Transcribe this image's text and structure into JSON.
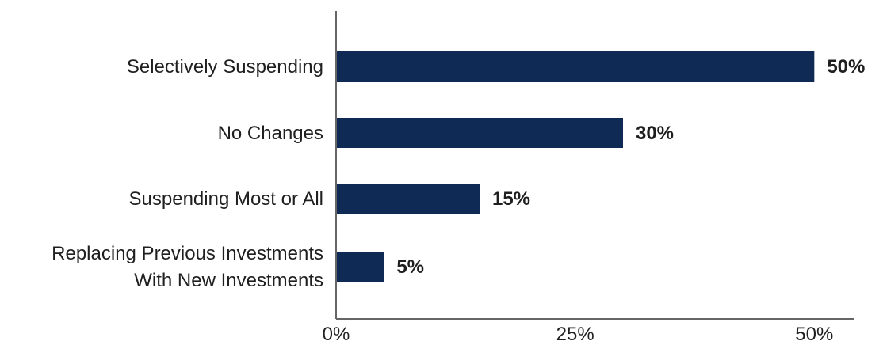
{
  "chart_data": {
    "type": "bar",
    "orientation": "horizontal",
    "categories": [
      [
        "Selectively Suspending"
      ],
      [
        "No Changes"
      ],
      [
        "Suspending Most or All"
      ],
      [
        "Replacing Previous Investments",
        "With New Investments"
      ]
    ],
    "values": [
      50,
      30,
      15,
      5
    ],
    "value_labels": [
      "50%",
      "30%",
      "15%",
      "5%"
    ],
    "xlim": [
      0,
      54.2
    ],
    "x_ticks": [
      0,
      25,
      50
    ],
    "x_tick_labels": [
      "0%",
      "25%",
      "50%"
    ],
    "grid": false,
    "legend": "none",
    "bar_color": "#0e2a55",
    "axis_color": "#666666"
  }
}
